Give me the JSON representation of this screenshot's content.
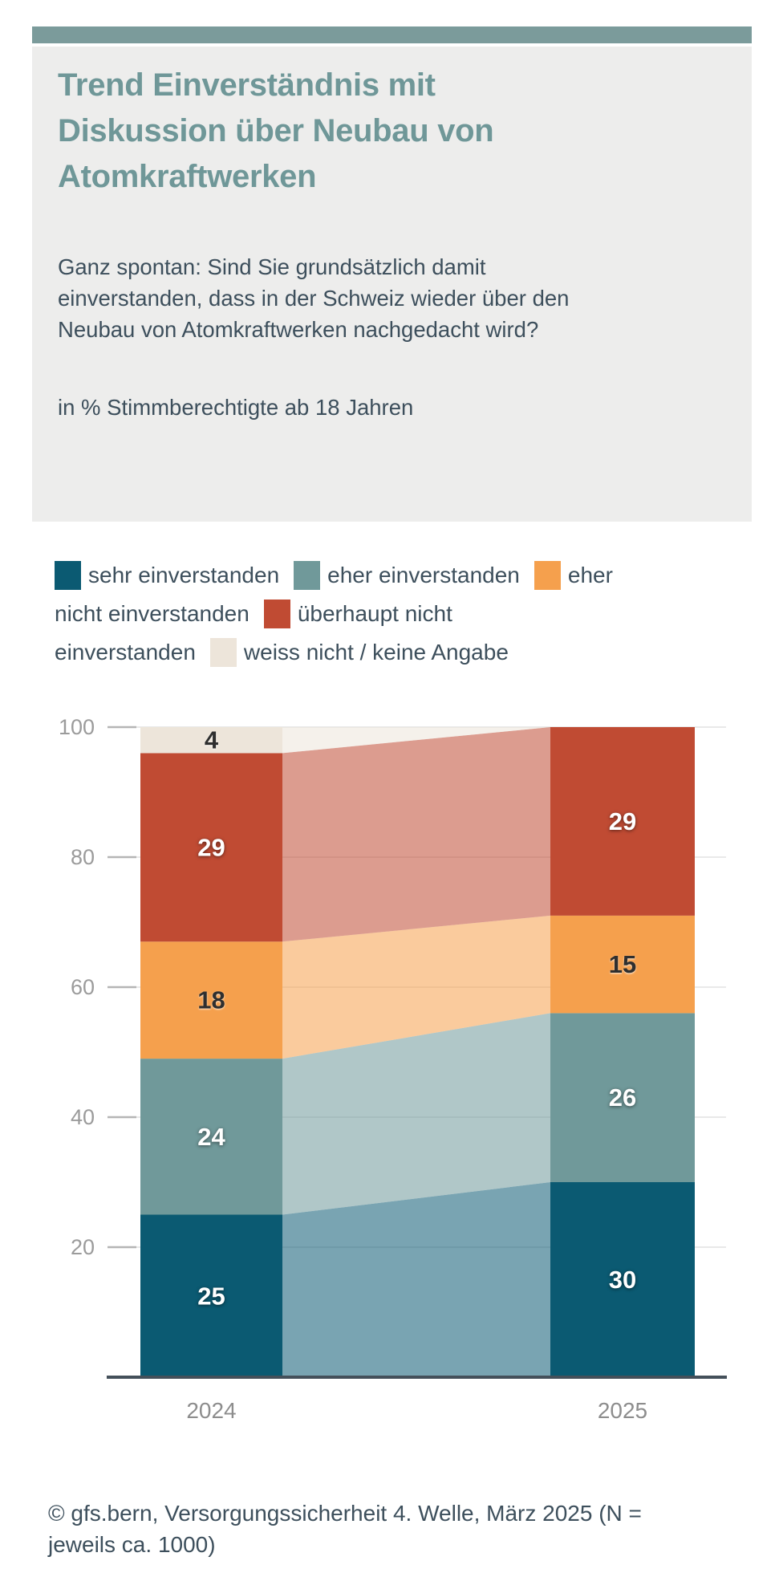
{
  "header": {
    "accent_bar_color": "#7b9b9b",
    "box_color": "#ededec",
    "title": "Trend Einverständnis mit Diskussion über Neubau von Atomkraftwerken",
    "title_color": "#6f9798",
    "question": "Ganz spontan: Sind Sie grundsätzlich damit einverstanden, dass in der Schweiz wieder über den Neubau von Atomkraftwerken nachgedacht wird?",
    "unit_note": "in % Stimmberechtigte ab 18 Jahren",
    "text_color": "#3d4f5c"
  },
  "legend": {
    "text_color": "#3d4f5c",
    "lines": [
      [
        {
          "swatch": "#0b5a72",
          "text": "sehr einverstanden"
        },
        {
          "swatch": "#70999a",
          "text": "eher einverstanden"
        },
        {
          "swatch": "#f5a04d",
          "text": "eher"
        }
      ],
      [
        {
          "text": "nicht einverstanden"
        },
        {
          "swatch": "#c04b33",
          "text": "überhaupt nicht"
        }
      ],
      [
        {
          "text": "einverstanden"
        },
        {
          "swatch": "#ede5da",
          "text": "weiss nicht / keine Angabe"
        }
      ]
    ]
  },
  "chart_data": {
    "type": "bar",
    "stacked": true,
    "connectors": true,
    "title": "Trend Einverständnis mit Diskussion über Neubau von Atomkraftwerken",
    "ylabel": "in % Stimmberechtigte ab 18 Jahren",
    "categories": [
      "2024",
      "2025"
    ],
    "series": [
      {
        "name": "sehr einverstanden",
        "color": "#0b5a72",
        "label_color": "light",
        "values": [
          25,
          30
        ]
      },
      {
        "name": "eher einverstanden",
        "color": "#70999a",
        "label_color": "light",
        "values": [
          24,
          26
        ]
      },
      {
        "name": "eher nicht einverstanden",
        "color": "#f5a04d",
        "label_color": "dark",
        "values": [
          18,
          15
        ]
      },
      {
        "name": "überhaupt nicht einverstanden",
        "color": "#c04b33",
        "label_color": "light",
        "values": [
          29,
          29
        ]
      },
      {
        "name": "weiss nicht / keine Angabe",
        "color": "#ede5da",
        "label_color": "dark",
        "values": [
          4,
          0
        ]
      }
    ],
    "ylim": [
      0,
      100
    ],
    "yticks": [
      20,
      40,
      60,
      80,
      100
    ],
    "grid": true,
    "legend_position": "top",
    "connector_opacity": 0.55,
    "grid_color": "#e9e9e9",
    "tick_color": "#b5b5b5",
    "ytick_label_color": "#9b9b9b",
    "xtick_label_color": "#8d8d8d",
    "axis_color": "#44505a"
  },
  "footer": {
    "source": "© gfs.bern, Versorgungssicherheit 4. Welle, März 2025 (N = jeweils ca. 1000)",
    "text_color": "#3d4f5c"
  }
}
